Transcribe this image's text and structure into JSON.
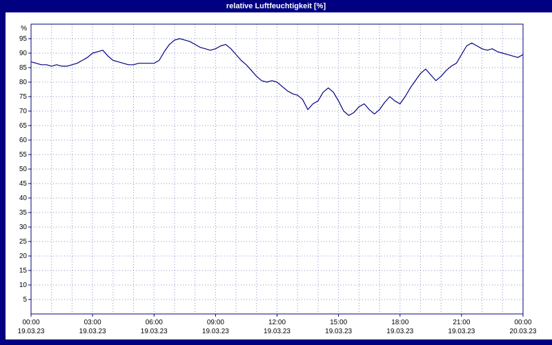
{
  "window": {
    "title": "relative Luftfeuchtigkeit [%]"
  },
  "colors": {
    "accent_navy": "#000080",
    "background": "#ffffff",
    "title_text": "#ffffff",
    "line": "#000080"
  },
  "chart_data": {
    "type": "line",
    "title": "relative Luftfeuchtigkeit [%]",
    "ylabel": "%",
    "xlabel": "",
    "ylim": [
      0,
      100
    ],
    "yticks": [
      5,
      10,
      15,
      20,
      25,
      30,
      35,
      40,
      45,
      50,
      55,
      60,
      65,
      70,
      75,
      80,
      85,
      90,
      95
    ],
    "grid": true,
    "legend": "none",
    "xlim_hours": [
      0,
      24
    ],
    "minor_x_grid_hours": 1,
    "xticks": [
      {
        "hour": 0,
        "time": "00:00",
        "date": "19.03.23"
      },
      {
        "hour": 3,
        "time": "03:00",
        "date": "19.03.23"
      },
      {
        "hour": 6,
        "time": "06:00",
        "date": "19.03.23"
      },
      {
        "hour": 9,
        "time": "09:00",
        "date": "19.03.23"
      },
      {
        "hour": 12,
        "time": "12:00",
        "date": "19.03.23"
      },
      {
        "hour": 15,
        "time": "15:00",
        "date": "19.03.23"
      },
      {
        "hour": 18,
        "time": "18:00",
        "date": "19.03.23"
      },
      {
        "hour": 21,
        "time": "21:00",
        "date": "19.03.23"
      },
      {
        "hour": 24,
        "time": "00:00",
        "date": "20.03.23"
      }
    ],
    "series": [
      {
        "name": "relative Luftfeuchtigkeit",
        "unit": "%",
        "start_hour": 0,
        "sample_interval_hours": 0.25,
        "values": [
          87.0,
          86.5,
          86.0,
          86.0,
          85.5,
          86.0,
          85.5,
          85.5,
          86.0,
          86.5,
          87.5,
          88.5,
          90.0,
          90.5,
          91.0,
          89.0,
          87.5,
          87.0,
          86.5,
          86.0,
          86.0,
          86.5,
          86.5,
          86.5,
          86.5,
          87.5,
          90.5,
          93.0,
          94.5,
          95.0,
          94.5,
          94.0,
          93.0,
          92.0,
          91.5,
          91.0,
          91.5,
          92.5,
          93.0,
          91.5,
          89.5,
          87.5,
          86.0,
          84.0,
          82.0,
          80.5,
          80.0,
          80.5,
          80.0,
          78.5,
          77.0,
          76.0,
          75.5,
          74.0,
          70.5,
          72.5,
          73.5,
          76.5,
          78.0,
          76.5,
          73.5,
          70.0,
          68.5,
          69.5,
          71.5,
          72.5,
          70.5,
          69.0,
          70.5,
          73.0,
          75.0,
          73.5,
          72.5,
          75.0,
          78.0,
          80.5,
          83.0,
          84.5,
          82.5,
          80.5,
          82.0,
          84.0,
          85.5,
          86.5,
          89.5,
          92.5,
          93.5,
          92.5,
          91.5,
          91.0,
          91.5,
          90.5,
          90.0,
          89.5,
          89.0,
          88.5,
          89.5
        ]
      }
    ]
  }
}
